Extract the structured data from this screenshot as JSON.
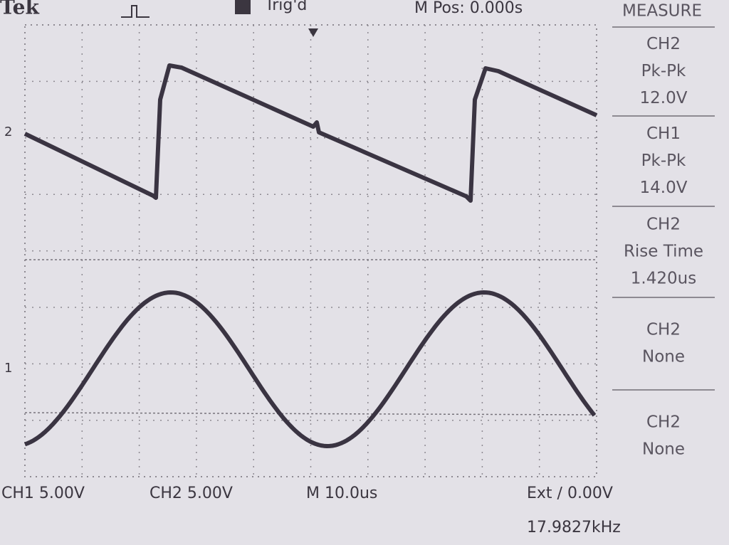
{
  "header": {
    "brand": "Tek",
    "trigger_status": "Trig'd",
    "position": "M Pos: 0.000s"
  },
  "markers": {
    "ch2": "2",
    "ch1": "1"
  },
  "menu": {
    "title": "MEASURE",
    "items": [
      {
        "channel": "CH2",
        "type": "Pk-Pk",
        "value": "12.0V"
      },
      {
        "channel": "CH1",
        "type": "Pk-Pk",
        "value": "14.0V"
      },
      {
        "channel": "CH2",
        "type": "Rise Time",
        "value": "1.420us"
      },
      {
        "channel": "CH2",
        "type": "None"
      },
      {
        "channel": "CH2",
        "type": "None"
      }
    ]
  },
  "footer": {
    "ch1_scale": "CH1  5.00V",
    "ch2_scale": "CH2  5.00V",
    "timebase": "M 10.0us",
    "trigger": "Ext ∕ 0.00V",
    "frequency": "17.9827kHz"
  }
}
